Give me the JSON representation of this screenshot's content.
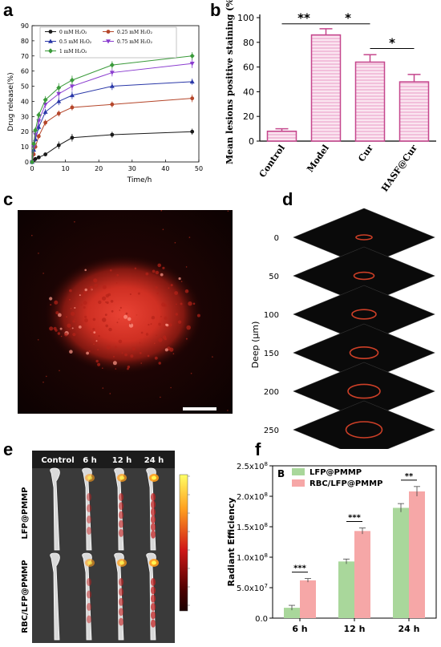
{
  "panels": {
    "a": "a",
    "b": "b",
    "c": "c",
    "d": "d",
    "e": "e",
    "f": "f"
  },
  "colors": {
    "c0": "#1a1a1a",
    "c025": "#b5462a",
    "c05": "#2a38a8",
    "c075": "#8a3ccf",
    "c1": "#3a9a3a",
    "b_bar": "#c5478d",
    "b_fill": "#f2bfdb",
    "f_green": "#a9d79b",
    "f_pink": "#f6a7a7"
  },
  "chart_data": [
    {
      "id": "a",
      "type": "line",
      "title": "",
      "xlabel": "Time/h",
      "ylabel": "Drug release(%)",
      "xlim": [
        0,
        50
      ],
      "ylim": [
        0,
        90
      ],
      "xticks": [
        0,
        10,
        20,
        30,
        40,
        50
      ],
      "yticks": [
        0,
        10,
        20,
        30,
        40,
        50,
        60,
        70,
        80,
        90
      ],
      "legend_position": "top",
      "legend": [
        "0 mM H₂O₂",
        "0.25 mM H₂O₂",
        "0.5 mM H₂O₂",
        "0.75 mM H₂O₂",
        "1 mM H₂O₂"
      ],
      "series": [
        {
          "name": "0 mM H₂O₂",
          "x": [
            0,
            0.5,
            1,
            2,
            4,
            8,
            12,
            24,
            48
          ],
          "y": [
            0,
            1,
            2,
            3,
            5,
            11,
            16,
            18,
            20
          ],
          "err": [
            0,
            0.5,
            0.5,
            1,
            1,
            2.5,
            2.5,
            2,
            2
          ],
          "marker": "circle"
        },
        {
          "name": "0.25 mM H₂O₂",
          "x": [
            0,
            0.5,
            1,
            2,
            4,
            8,
            12,
            24,
            48
          ],
          "y": [
            0,
            5,
            10,
            17,
            26,
            32,
            36,
            38,
            42
          ],
          "err": [
            0,
            1,
            1,
            1.5,
            2,
            2,
            2,
            2,
            2.5
          ],
          "marker": "circle"
        },
        {
          "name": "0.5 mM H₂O₂",
          "x": [
            0,
            0.5,
            1,
            2,
            4,
            8,
            12,
            24,
            48
          ],
          "y": [
            0,
            8,
            15,
            23,
            33,
            40,
            44,
            50,
            53
          ],
          "err": [
            0,
            1,
            1.5,
            2,
            2,
            2.5,
            2.5,
            2.5,
            2
          ],
          "marker": "triangle"
        },
        {
          "name": "0.75 mM H₂O₂",
          "x": [
            0,
            0.5,
            1,
            2,
            4,
            8,
            12,
            24,
            48
          ],
          "y": [
            0,
            10,
            18,
            27,
            38,
            45,
            50,
            59,
            65
          ],
          "err": [
            0,
            1,
            2,
            2,
            2.5,
            2.5,
            3,
            2.5,
            3
          ],
          "marker": "triangle-down"
        },
        {
          "name": "1 mM H₂O₂",
          "x": [
            0,
            0.5,
            1,
            2,
            4,
            8,
            12,
            24,
            48
          ],
          "y": [
            0,
            12,
            21,
            31,
            41,
            49,
            54,
            64,
            70
          ],
          "err": [
            0,
            1.5,
            2,
            2,
            2.5,
            3,
            3,
            2.5,
            2.5
          ],
          "marker": "diamond"
        }
      ]
    },
    {
      "id": "b",
      "type": "bar",
      "title": "",
      "xlabel": "",
      "ylabel": "Mean lesions positive staining (%)",
      "ylim": [
        0,
        100
      ],
      "yticks": [
        0,
        20,
        40,
        60,
        80,
        100
      ],
      "categories": [
        "Control",
        "Model",
        "Cur",
        "HASF@Cur"
      ],
      "values": [
        8,
        86,
        64,
        48
      ],
      "errors": [
        2,
        5,
        6,
        6
      ],
      "significance": [
        {
          "from": 0,
          "to": 1,
          "label": "**",
          "y": 95
        },
        {
          "from": 1,
          "to": 2,
          "label": "*",
          "y": 95
        },
        {
          "from": 2,
          "to": 3,
          "label": "*",
          "y": 75
        }
      ]
    },
    {
      "id": "f",
      "type": "bar",
      "title": "",
      "inset_label": "B",
      "xlabel": "",
      "ylabel": "Radiant Efficiency",
      "ylim": [
        0,
        250000000.0
      ],
      "yticks": [
        0,
        50000000.0,
        100000000.0,
        150000000.0,
        200000000.0,
        250000000.0
      ],
      "ytick_labels": [
        {
          "m": "0.0",
          "e": ""
        },
        {
          "m": "5.0x10",
          "e": "7"
        },
        {
          "m": "1.0x10",
          "e": "8"
        },
        {
          "m": "1.5x10",
          "e": "8"
        },
        {
          "m": "2.0x10",
          "e": "8"
        },
        {
          "m": "2.5x10",
          "e": "8"
        }
      ],
      "legend_position": "top-left",
      "categories": [
        "6 h",
        "12 h",
        "24 h"
      ],
      "series": [
        {
          "name": "LFP@PMMP",
          "values": [
            17000000.0,
            93000000.0,
            181000000.0
          ],
          "errors": [
            4000000.0,
            4000000.0,
            7000000.0
          ]
        },
        {
          "name": "RBC/LFP@PMMP",
          "values": [
            62000000.0,
            143000000.0,
            208000000.0
          ],
          "errors": [
            3000000.0,
            5000000.0,
            8000000.0
          ]
        }
      ],
      "significance": [
        "***",
        "***",
        "**"
      ]
    }
  ],
  "panel_d": {
    "ylabel": "Deep (μm)",
    "depths": [
      "0",
      "50",
      "100",
      "150",
      "200",
      "250"
    ]
  },
  "panel_e": {
    "columns": [
      "Control",
      "6 h",
      "12 h",
      "24 h"
    ],
    "rows": [
      "LFP@PMMP",
      "RBC/LFP@PMMP"
    ]
  }
}
